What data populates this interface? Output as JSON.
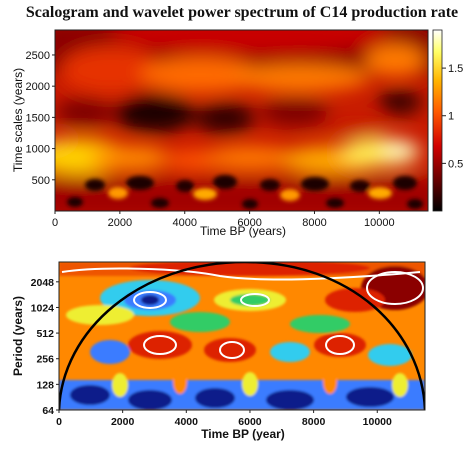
{
  "chart_data": [
    {
      "type": "heatmap",
      "title": "Scalogram and wavelet power spectrum of C14 production rate",
      "xlabel": "Time BP (years)",
      "ylabel": "Time scales (years)",
      "xlim": [
        0,
        11500
      ],
      "ylim": [
        0,
        2900
      ],
      "x_ticks": [
        0,
        2000,
        4000,
        6000,
        8000,
        10000
      ],
      "y_ticks": [
        500,
        1000,
        1500,
        2000,
        2500
      ],
      "colorbar": {
        "range": [
          0,
          1.9
        ],
        "ticks": [
          0.5,
          1,
          1.5
        ],
        "tick_labels": [
          "0.5",
          "1",
          "1.5"
        ],
        "colors": [
          "#000000",
          "#6b0000",
          "#d10000",
          "#ff5a00",
          "#ffb400",
          "#ffff66",
          "#ffffff"
        ]
      }
    },
    {
      "type": "heatmap",
      "title": "",
      "xlabel": "Time BP (year)",
      "ylabel": "Period (years)",
      "xlim": [
        0,
        11500
      ],
      "y_scale": "log2",
      "ylim": [
        64,
        3500
      ],
      "x_ticks": [
        0,
        2000,
        4000,
        6000,
        8000,
        10000
      ],
      "y_ticks": [
        64,
        128,
        256,
        512,
        1024,
        2048
      ],
      "cone_of_influence": true,
      "colors": [
        "#0a1a8a",
        "#3a7bff",
        "#33ccee",
        "#33cc66",
        "#eeee33",
        "#ff8800",
        "#dd2200",
        "#8b0000"
      ]
    }
  ]
}
